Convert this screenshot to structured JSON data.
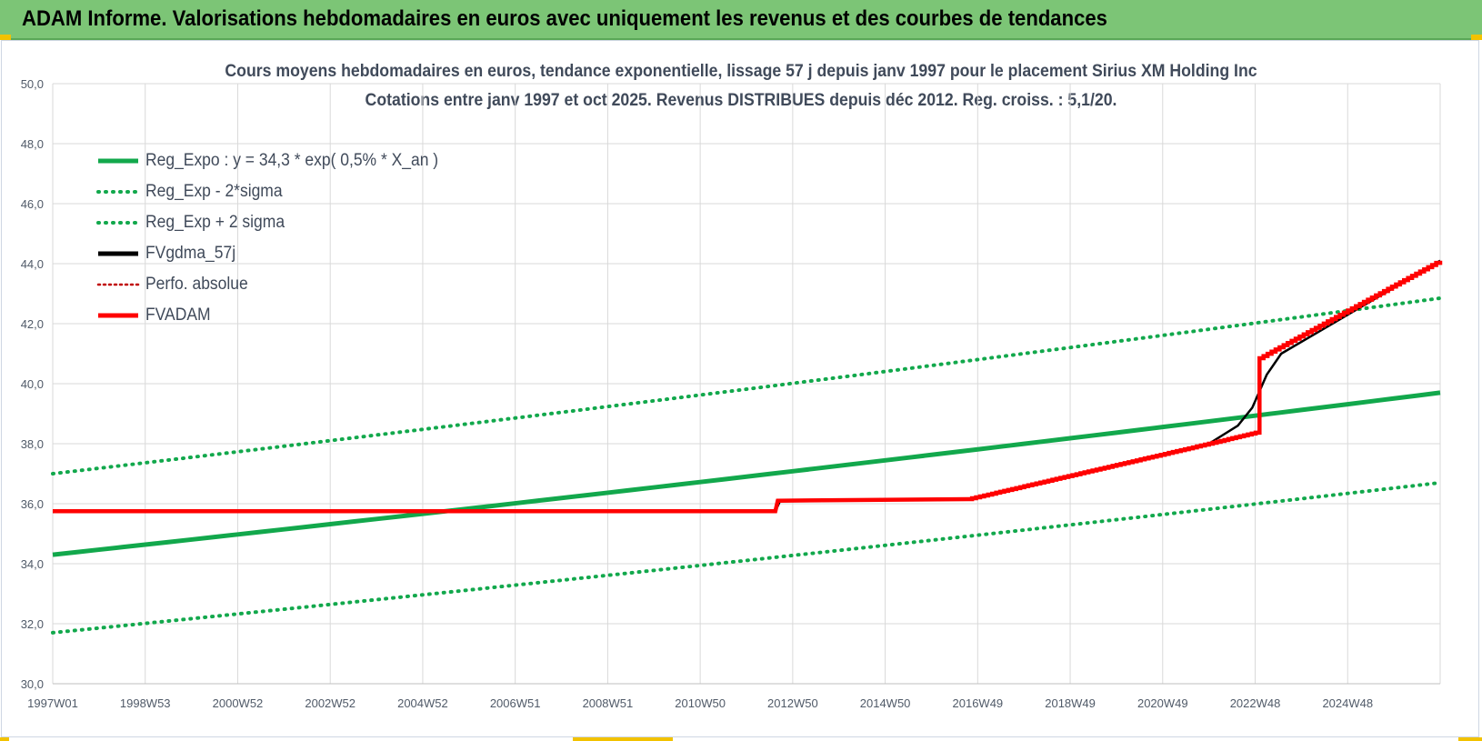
{
  "header": {
    "title": "ADAM Informe. Valorisations hebdomadaires en euros avec uniquement les revenus et des courbes de tendances"
  },
  "chart_data": {
    "type": "line",
    "title": "Cours moyens hebdomadaires en euros, tendance exponentielle, lissage 57 j depuis janv 1997 pour le placement Sirius XM Holding Inc",
    "subtitle": "Cotations entre janv 1997 et oct 2025. Revenus DISTRIBUES depuis déc 2012. Reg. croiss. : 5,1/20.",
    "xlabel": "",
    "ylabel": "",
    "ylim": [
      30,
      50
    ],
    "yticks": [
      "30,0",
      "32,0",
      "34,0",
      "36,0",
      "38,0",
      "40,0",
      "42,0",
      "44,0",
      "46,0",
      "48,0",
      "50,0"
    ],
    "x_tick_labels": [
      "1997W01",
      "1998W53",
      "2000W52",
      "2002W52",
      "2004W52",
      "2006W51",
      "2008W51",
      "2010W50",
      "2012W50",
      "2014W50",
      "2016W49",
      "2018W49",
      "2020W49",
      "2022W48",
      "2024W48"
    ],
    "x_range_years": [
      1997.0,
      2025.8
    ],
    "grid": true,
    "legend_position": "top-left",
    "series": [
      {
        "name": "Reg_Expo : y = 34,3 * exp( 0,5% *  X_an )",
        "style": "solid",
        "color": "#12a84c",
        "x": [
          1997.0,
          2025.8
        ],
        "y": [
          34.3,
          39.7
        ]
      },
      {
        "name": "Reg_Exp - 2*sigma",
        "style": "dotted",
        "color": "#12a84c",
        "x": [
          1997.0,
          2025.8
        ],
        "y": [
          31.7,
          36.7
        ]
      },
      {
        "name": "Reg_Exp + 2 sigma",
        "style": "dotted",
        "color": "#12a84c",
        "x": [
          1997.0,
          2025.8
        ],
        "y": [
          37.0,
          42.85
        ]
      },
      {
        "name": "FVgdma_57j",
        "style": "solid",
        "color": "#000000",
        "x": [
          1997.0,
          2012.0,
          2012.1,
          2016.0,
          2021.0,
          2021.6,
          2021.9,
          2022.2,
          2022.5,
          2025.8
        ],
        "y": [
          35.75,
          35.75,
          36.1,
          36.15,
          38.0,
          38.6,
          39.2,
          40.3,
          41.0,
          44.1
        ]
      },
      {
        "name": "Perfo. absolue",
        "style": "dotted",
        "color": "#c00000",
        "x": [],
        "y": []
      },
      {
        "name": "FVADAM",
        "style": "solid",
        "color": "#ff0000",
        "x": [
          1997.0,
          2012.0,
          2012.05,
          2016.0,
          2021.0,
          2022.05,
          2022.05,
          2025.8
        ],
        "y": [
          35.75,
          35.75,
          36.1,
          36.15,
          38.0,
          38.4,
          40.85,
          44.1
        ]
      }
    ]
  },
  "colors": {
    "banner": "#7cc576",
    "grid": "#d9d9d9",
    "trend_green": "#12a84c",
    "fvadam_red": "#ff0000",
    "fvgdma_black": "#000000"
  }
}
